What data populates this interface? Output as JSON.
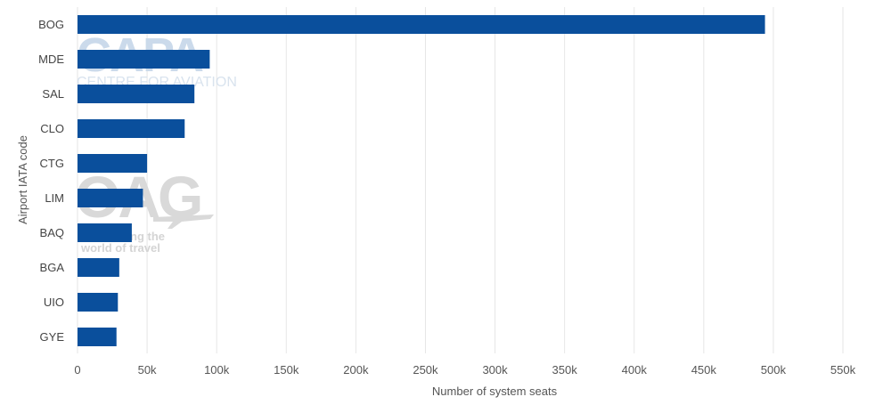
{
  "chart_data": {
    "type": "bar",
    "orientation": "horizontal",
    "categories": [
      "BOG",
      "MDE",
      "SAL",
      "CLO",
      "CTG",
      "LIM",
      "BAQ",
      "BGA",
      "UIO",
      "GYE"
    ],
    "values": [
      494000,
      95000,
      84000,
      77000,
      50000,
      47000,
      39000,
      30000,
      29000,
      28000
    ],
    "xlabel": "Number of system seats",
    "ylabel": "Airport IATA code",
    "xlim": [
      0,
      550000
    ],
    "xticks": [
      0,
      50000,
      100000,
      150000,
      200000,
      250000,
      300000,
      350000,
      400000,
      450000,
      500000,
      550000
    ],
    "xtick_labels": [
      "0",
      "50k",
      "100k",
      "150k",
      "200k",
      "250k",
      "300k",
      "350k",
      "400k",
      "450k",
      "500k",
      "550k"
    ],
    "grid": "vertical",
    "bar_color": "#0a4f9c",
    "grid_color": "#e6e6e6"
  },
  "watermarks": {
    "capa_logo": "CAPA",
    "capa_subtitle": "CENTRE FOR AVIATION",
    "oag_logo": "OAG",
    "oag_tagline_1": "ng the",
    "oag_tagline_2": "world of travel"
  }
}
